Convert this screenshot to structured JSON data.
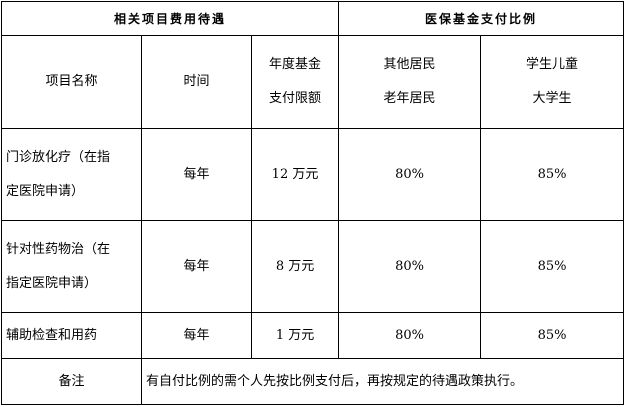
{
  "header": {
    "group1": "相关项目费用待遇",
    "group2": "医保基金支付比例"
  },
  "columns": {
    "name": "项目名称",
    "time": "时间",
    "limit": [
      "年度基金",
      "支付限额"
    ],
    "others": [
      "其他居民",
      "老年居民"
    ],
    "students": [
      "学生儿童",
      "大学生"
    ]
  },
  "rows": [
    {
      "name": [
        "门诊放化疗（在指",
        "定医院申请）"
      ],
      "time": "每年",
      "limit": "12 万元",
      "others": "80%",
      "students": "85%"
    },
    {
      "name": [
        "针对性药物治（在",
        "指定医院申请）"
      ],
      "time": "每年",
      "limit": "8 万元",
      "others": "80%",
      "students": "85%"
    },
    {
      "name": [
        "辅助检查和用药"
      ],
      "time": "每年",
      "limit": "1 万元",
      "others": "80%",
      "students": "85%"
    }
  ],
  "note": {
    "label": "备注",
    "text": "有自付比例的需个人先按比例支付后，再按规定的待遇政策执行。"
  }
}
